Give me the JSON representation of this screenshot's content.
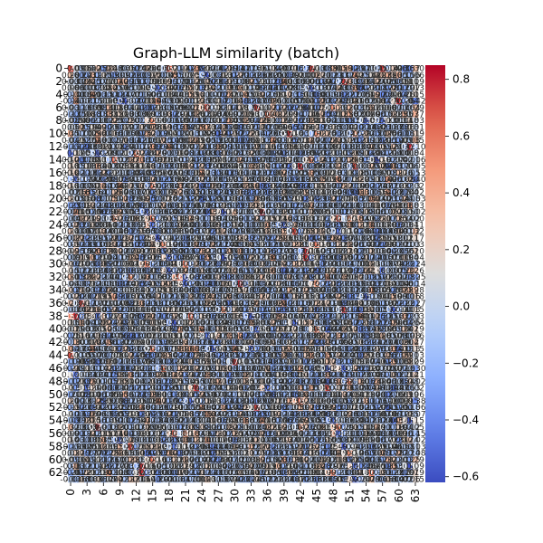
{
  "chart_data": {
    "type": "heatmap",
    "title": "Graph-LLM similarity (batch)",
    "n_rows": 64,
    "n_cols": 64,
    "x_tick_labels": [
      "0",
      "3",
      "6",
      "9",
      "12",
      "15",
      "18",
      "21",
      "24",
      "27",
      "30",
      "33",
      "36",
      "39",
      "42",
      "45",
      "48",
      "51",
      "54",
      "57",
      "60",
      "63"
    ],
    "y_tick_labels": [
      "0",
      "2",
      "4",
      "6",
      "8",
      "10",
      "12",
      "14",
      "16",
      "18",
      "20",
      "22",
      "24",
      "26",
      "28",
      "30",
      "32",
      "34",
      "36",
      "38",
      "40",
      "42",
      "44",
      "46",
      "48",
      "50",
      "52",
      "54",
      "56",
      "58",
      "60",
      "62"
    ],
    "colorbar": {
      "colormap": "coolwarm",
      "vmin": -0.62,
      "vmax": 0.85,
      "tick_labels": [
        "−0.6",
        "−0.4",
        "−0.2",
        "0.0",
        "0.2",
        "0.4",
        "0.6",
        "0.8"
      ],
      "tick_values": [
        -0.6,
        -0.4,
        -0.2,
        0.0,
        0.2,
        0.4,
        0.6,
        0.8
      ]
    },
    "annotated_cells": true,
    "annotation_precision": 2,
    "value_distribution": "mostly near 0 (range about -0.62 to 0.85); values are too dense to read individually"
  }
}
